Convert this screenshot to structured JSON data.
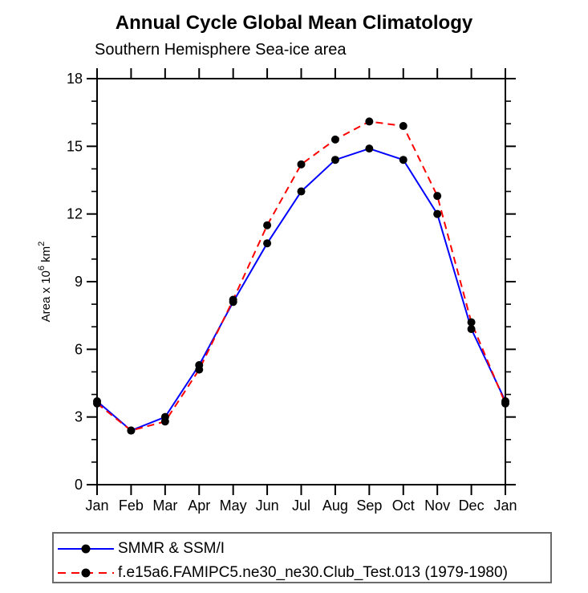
{
  "chart_data": {
    "type": "line",
    "title": "Annual Cycle Global Mean Climatology",
    "subtitle": "Southern Hemisphere Sea-ice area",
    "x_tick_labels": [
      "Jan",
      "Feb",
      "Mar",
      "Apr",
      "May",
      "Jun",
      "Jul",
      "Aug",
      "Sep",
      "Oct",
      "Nov",
      "Dec",
      "Jan"
    ],
    "ylabel": "Area x 10^6 km^2",
    "ylabel_parts": [
      {
        "t": "Area x 10",
        "sup": false
      },
      {
        "t": "6",
        "sup": true
      },
      {
        "t": " km",
        "sup": false
      },
      {
        "t": "2",
        "sup": true
      }
    ],
    "ylim": [
      0,
      18
    ],
    "y_major_ticks": [
      0,
      3,
      6,
      9,
      12,
      15,
      18
    ],
    "y_minor_step": 1,
    "grid": false,
    "frame": "box",
    "legend_position": "bottom-left-box",
    "series": [
      {
        "name": "SMMR & SSM/I",
        "color": "#0000ff",
        "line_style": "solid",
        "marker": "filled-circle",
        "marker_color": "#000000",
        "values": [
          3.7,
          2.4,
          3.0,
          5.3,
          8.1,
          10.7,
          13.0,
          14.4,
          14.9,
          14.4,
          12.0,
          6.9,
          3.7
        ]
      },
      {
        "name": "f.e15a6.FAMIPC5.ne30_ne30.Club_Test.013 (1979-1980)",
        "color": "#ff0000",
        "line_style": "dashed",
        "marker": "filled-circle",
        "marker_color": "#000000",
        "values": [
          3.6,
          2.4,
          2.8,
          5.1,
          8.2,
          11.5,
          14.2,
          15.3,
          16.1,
          15.9,
          12.8,
          7.2,
          3.6
        ]
      }
    ]
  },
  "colors": {
    "background": "#ffffff",
    "axis": "#000000",
    "text": "#000000",
    "legend_border": "#6b6b6b",
    "marker": "#000000"
  }
}
